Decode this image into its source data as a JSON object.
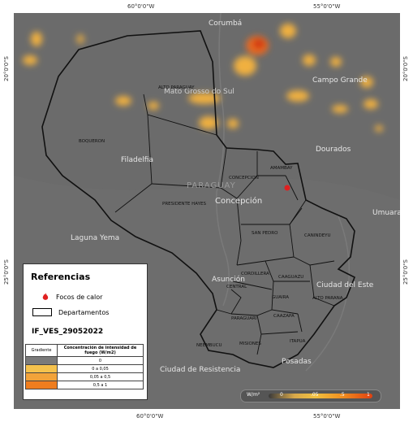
{
  "axes": {
    "top_ticks": [
      "60°0'0\"W",
      "55°0'0\"W"
    ],
    "bottom_ticks": [
      "60°0'0\"W",
      "55°0'0\"W"
    ],
    "left_ticks": [
      "20°0'0\"S",
      "25°0'0\"S"
    ],
    "right_ticks": [
      "20°0'0\"S",
      "25°0'0\"S"
    ]
  },
  "map": {
    "country_label": "PARAGUAY",
    "cities": [
      "Corumbá",
      "Campo Grande",
      "Dourados",
      "Umuarama",
      "Filadelfia",
      "Concepción",
      "Laguna Yema",
      "Asunción",
      "Ciudad del Este",
      "Ciudad de Resistencia",
      "Posadas"
    ],
    "departments": [
      "ALTO PARAGUAY",
      "BOQUERON",
      "PRESIDENTE HAYES",
      "CONCEPCION",
      "AMAMBAY",
      "SAN PEDRO",
      "CANINDEYU",
      "CORDILLERA",
      "CAAGUAZU",
      "CENTRAL",
      "GUAIRA",
      "ALTO PARANA",
      "PARAGUARI",
      "CAAZAPA",
      "NEEMBUCU",
      "MISIONES",
      "ITAPUA"
    ],
    "overlay_text": "Mato Grosso do Sul"
  },
  "legend": {
    "title": "Referencias",
    "items": [
      "Focos de calor",
      "Departamentos"
    ],
    "code": "IF_VES_29052022",
    "table": {
      "headers": [
        "Gradiente",
        "Concentración de intensidad de fuego (W/m2)"
      ],
      "rows": [
        {
          "color": "#7a7a7a",
          "label": "0"
        },
        {
          "color": "#f5c24d",
          "label": "0 a 0,05"
        },
        {
          "color": "#f2a33a",
          "label": "0,05 a 0,5"
        },
        {
          "color": "#ef7d1e",
          "label": "0,5 a 1"
        }
      ]
    }
  },
  "scale": {
    "unit": "W/m²",
    "labels": [
      "0",
      ".05",
      ".5",
      "1"
    ]
  },
  "colors": {
    "map_bg": "#6b6b6b",
    "hotspot_marker": "#e02020"
  }
}
